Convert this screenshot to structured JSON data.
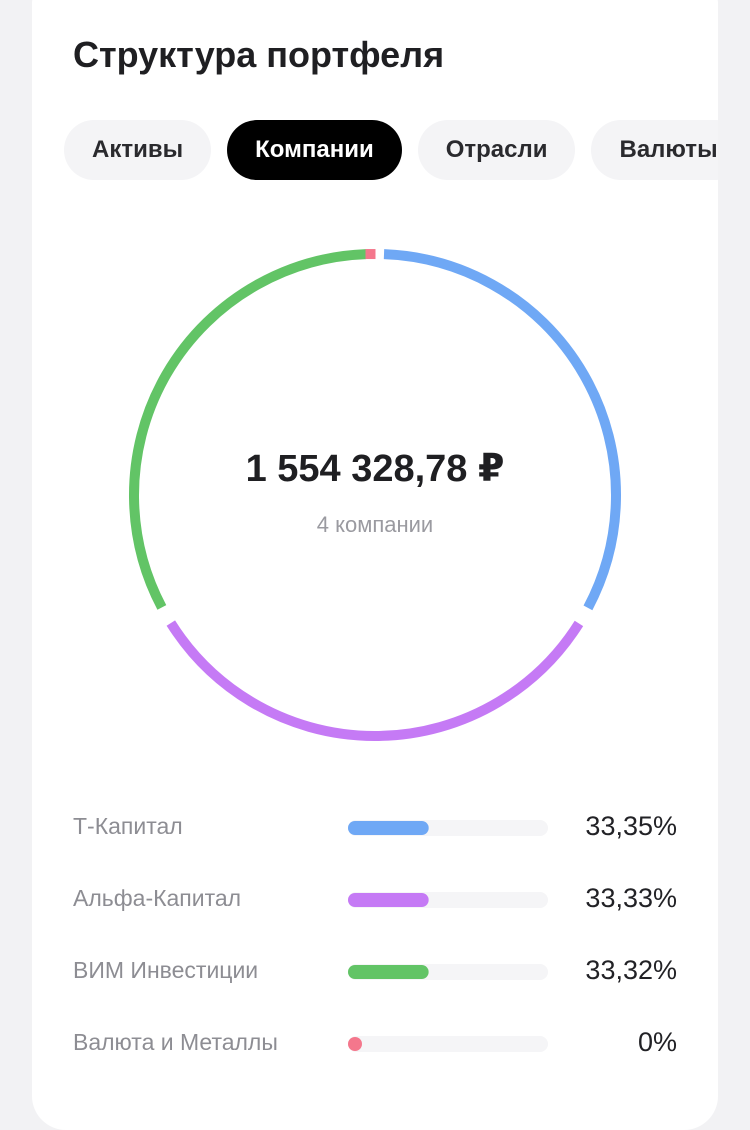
{
  "header": {
    "title": "Структура портфеля"
  },
  "tabs": [
    "Активы",
    "Компании",
    "Отрасли",
    "Валюты"
  ],
  "active_tab": 1,
  "chart_data": {
    "type": "donut",
    "center_value": "1 554 328,78 ₽",
    "center_label": "4 компании",
    "categories": [
      "Т-Капитал",
      "Альфа-Капитал",
      "ВИМ Инвестиции",
      "Валюта и Металлы"
    ],
    "values": [
      33.35,
      33.33,
      33.32,
      0
    ],
    "value_labels": [
      "33,35%",
      "33,33%",
      "33,32%",
      "0%"
    ],
    "colors": [
      "#6fa8f5",
      "#c57af5",
      "#62c466",
      "#f4778c"
    ]
  }
}
